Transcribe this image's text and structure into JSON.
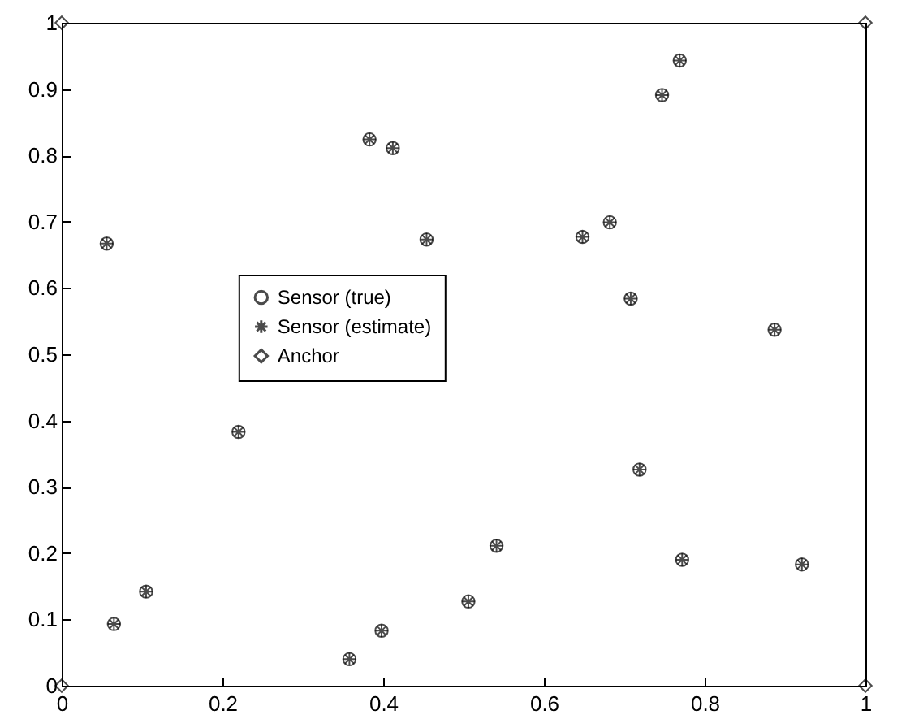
{
  "chart_data": {
    "type": "scatter",
    "xlim": [
      0,
      1
    ],
    "ylim": [
      0,
      1
    ],
    "xticks": [
      0,
      0.2,
      0.4,
      0.6,
      0.8,
      1
    ],
    "yticks": [
      0,
      0.1,
      0.2,
      0.3,
      0.4,
      0.5,
      0.6,
      0.7,
      0.8,
      0.9,
      1
    ],
    "grid": false,
    "legend": "left",
    "series": [
      {
        "name": "Sensor (true)",
        "color": "#000000",
        "marker": "circle",
        "x": [
          0.056,
          0.065,
          0.105,
          0.22,
          0.358,
          0.383,
          0.398,
          0.412,
          0.454,
          0.506,
          0.541,
          0.648,
          0.682,
          0.708,
          0.719,
          0.747,
          0.769,
          0.772,
          0.887,
          0.921
        ],
        "values": [
          0.667,
          0.093,
          0.142,
          0.383,
          0.04,
          0.824,
          0.083,
          0.811,
          0.673,
          0.127,
          0.211,
          0.677,
          0.699,
          0.584,
          0.326,
          0.891,
          0.943,
          0.19,
          0.537,
          0.183
        ]
      },
      {
        "name": "Sensor (estimate)",
        "color": "#000000",
        "marker": "cross",
        "x": [
          0.056,
          0.065,
          0.105,
          0.22,
          0.358,
          0.383,
          0.398,
          0.412,
          0.454,
          0.506,
          0.541,
          0.648,
          0.682,
          0.708,
          0.719,
          0.747,
          0.769,
          0.772,
          0.887,
          0.921
        ],
        "values": [
          0.667,
          0.093,
          0.142,
          0.383,
          0.04,
          0.824,
          0.083,
          0.811,
          0.673,
          0.127,
          0.211,
          0.677,
          0.699,
          0.584,
          0.326,
          0.891,
          0.943,
          0.19,
          0.537,
          0.183
        ]
      },
      {
        "name": "Anchor",
        "color": "#000000",
        "marker": "diamond",
        "x": [
          0,
          0,
          1,
          1
        ],
        "values": [
          0,
          1,
          1,
          0
        ]
      }
    ]
  }
}
